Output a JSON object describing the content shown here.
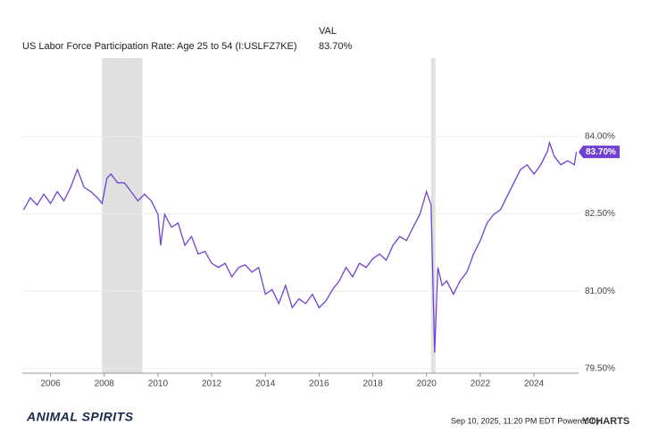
{
  "chart_data": {
    "type": "line",
    "header": {
      "column": "VAL"
    },
    "series": [
      {
        "name": "US Labor Force Participation Rate: Age 25 to 54 (I:USLFZ7KE)",
        "color": "#7041d4",
        "x": [
          2005.0,
          2005.25,
          2005.5,
          2005.75,
          2006.0,
          2006.25,
          2006.5,
          2006.75,
          2007.0,
          2007.25,
          2007.5,
          2007.75,
          2007.92,
          2008.1,
          2008.25,
          2008.5,
          2008.75,
          2009.0,
          2009.25,
          2009.5,
          2009.75,
          2010.0,
          2010.1,
          2010.25,
          2010.5,
          2010.75,
          2011.0,
          2011.25,
          2011.5,
          2011.75,
          2012.0,
          2012.25,
          2012.5,
          2012.75,
          2013.0,
          2013.25,
          2013.5,
          2013.75,
          2014.0,
          2014.25,
          2014.5,
          2014.75,
          2015.0,
          2015.25,
          2015.5,
          2015.75,
          2016.0,
          2016.25,
          2016.5,
          2016.75,
          2017.0,
          2017.25,
          2017.5,
          2017.75,
          2018.0,
          2018.25,
          2018.5,
          2018.75,
          2019.0,
          2019.25,
          2019.5,
          2019.75,
          2020.0,
          2020.17,
          2020.3,
          2020.42,
          2020.58,
          2020.75,
          2021.0,
          2021.25,
          2021.5,
          2021.75,
          2022.0,
          2022.25,
          2022.5,
          2022.75,
          2023.0,
          2023.25,
          2023.5,
          2023.75,
          2024.0,
          2024.25,
          2024.5,
          2024.58,
          2024.75,
          2025.0,
          2025.25,
          2025.5,
          2025.58
        ],
        "values": [
          82.58,
          82.81,
          82.67,
          82.88,
          82.7,
          82.93,
          82.75,
          83.01,
          83.36,
          83.01,
          82.93,
          82.81,
          82.7,
          83.19,
          83.27,
          83.1,
          83.1,
          82.93,
          82.75,
          82.88,
          82.75,
          82.49,
          81.89,
          82.49,
          82.24,
          82.32,
          81.89,
          82.06,
          81.72,
          81.77,
          81.54,
          81.46,
          81.54,
          81.28,
          81.46,
          81.51,
          81.37,
          81.46,
          80.94,
          81.03,
          80.76,
          81.11,
          80.68,
          80.85,
          80.76,
          80.94,
          80.68,
          80.81,
          81.03,
          81.2,
          81.46,
          81.28,
          81.54,
          81.46,
          81.63,
          81.72,
          81.6,
          81.89,
          82.06,
          81.98,
          82.24,
          82.49,
          82.93,
          82.67,
          79.81,
          81.46,
          81.11,
          81.2,
          80.94,
          81.2,
          81.37,
          81.72,
          81.98,
          82.32,
          82.49,
          82.58,
          82.84,
          83.1,
          83.36,
          83.45,
          83.27,
          83.45,
          83.71,
          83.88,
          83.62,
          83.45,
          83.53,
          83.45,
          83.7
        ]
      }
    ],
    "end_label": {
      "value": 83.7,
      "label": "83.70%"
    },
    "recessions": [
      [
        2007.92,
        2009.42
      ],
      [
        2020.17,
        2020.33
      ]
    ],
    "recession_color": "#e0e0e0",
    "xlim": [
      2004.95,
      2025.66
    ],
    "xticks": [
      2006,
      2008,
      2010,
      2012,
      2014,
      2016,
      2018,
      2020,
      2022,
      2024
    ],
    "ylim": [
      79.41,
      85.52
    ],
    "yticks": [
      {
        "value": 79.5,
        "label": "79.50%"
      },
      {
        "value": 81,
        "label": "81.00%"
      },
      {
        "value": 82.5,
        "label": "82.50%"
      },
      {
        "value": 84,
        "label": "84.00%"
      }
    ],
    "grid": true,
    "footer": {
      "timestamp": "Sep 10, 2025, 11:20 PM EDT Powered by",
      "brand": "YCHARTS",
      "logo": "ANIMAL SPIRITS"
    }
  }
}
